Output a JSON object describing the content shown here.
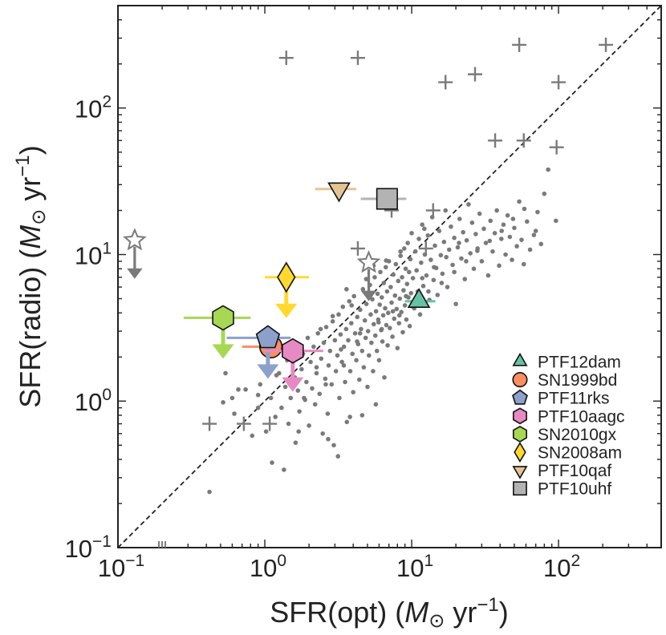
{
  "chart_data": {
    "type": "scatter",
    "xlabel": "SFR(opt) (M⊙ yr⁻¹)",
    "ylabel": "SFR(radio) (M⊙ yr⁻¹)",
    "xlabel_parts": {
      "pre": "SFR(opt) (",
      "m": "M",
      "sun": "⊙",
      "mid": " yr",
      "exp": "−1",
      "post": ")"
    },
    "ylabel_parts": {
      "pre": "SFR(radio) (",
      "m": "M",
      "sun": "⊙",
      "mid": " yr",
      "exp": "−1",
      "post": ")"
    },
    "x_scale": "log",
    "y_scale": "log",
    "xlim": [
      0.1,
      500
    ],
    "ylim": [
      0.1,
      500
    ],
    "x_ticks": [
      {
        "value": 0.1,
        "base": "10",
        "exp": "−1"
      },
      {
        "value": 1,
        "base": "10",
        "exp": "0"
      },
      {
        "value": 10,
        "base": "10",
        "exp": "1"
      },
      {
        "value": 100,
        "base": "10",
        "exp": "2"
      }
    ],
    "y_ticks": [
      {
        "value": 0.1,
        "base": "10",
        "exp": "−1"
      },
      {
        "value": 1,
        "base": "10",
        "exp": "0"
      },
      {
        "value": 10,
        "base": "10",
        "exp": "1"
      },
      {
        "value": 100,
        "base": "10",
        "exp": "2"
      }
    ],
    "grid": false,
    "legend_position": "bottom-right",
    "one_to_one_line": true,
    "highlighted": [
      {
        "name": "PTF12dam",
        "marker": "triangle-up",
        "color": "#66c2a5",
        "x": 11.2,
        "y": 4.8,
        "xerr": [
          9.0,
          14.5
        ],
        "upper_limit": false
      },
      {
        "name": "SN1999bd",
        "marker": "circle",
        "color": "#fc8d62",
        "x": 1.1,
        "y": 2.35,
        "xerr": [
          0.7,
          1.4
        ],
        "upper_limit": false
      },
      {
        "name": "PTF11rks",
        "marker": "pentagon",
        "color": "#8da0cb",
        "x": 1.05,
        "y": 2.7,
        "xerr": [
          0.55,
          1.5
        ],
        "upper_limit": true
      },
      {
        "name": "PTF10aagc",
        "marker": "hexagon",
        "color": "#e78ac3",
        "x": 1.55,
        "y": 2.2,
        "xerr": [
          1.0,
          2.5
        ],
        "upper_limit": true
      },
      {
        "name": "SN2010gx",
        "marker": "hexagon",
        "color": "#a6d854",
        "x": 0.52,
        "y": 3.7,
        "xerr": [
          0.28,
          0.8
        ],
        "upper_limit": true
      },
      {
        "name": "SN2008am",
        "marker": "diamond",
        "color": "#ffd92f",
        "x": 1.4,
        "y": 7.0,
        "xerr": [
          1.0,
          2.0
        ],
        "upper_limit": true
      },
      {
        "name": "PTF10qaf",
        "marker": "triangle-down",
        "color": "#e5c494",
        "x": 3.2,
        "y": 28.0,
        "xerr": [
          2.2,
          4.2
        ],
        "upper_limit": false
      },
      {
        "name": "PTF10uhf",
        "marker": "square",
        "color": "#b3b3b3",
        "x": 6.8,
        "y": 24.0,
        "xerr": [
          4.5,
          9.2
        ],
        "upper_limit": false
      }
    ],
    "star_limits": [
      {
        "x": 0.13,
        "y": 12.5
      },
      {
        "x": 5.1,
        "y": 8.8
      }
    ],
    "plus_points": [
      [
        1.4,
        220
      ],
      [
        4.3,
        220
      ],
      [
        17,
        150
      ],
      [
        27,
        170
      ],
      [
        54,
        270
      ],
      [
        100,
        150
      ],
      [
        210,
        270
      ],
      [
        37,
        60
      ],
      [
        58,
        60
      ],
      [
        97,
        54
      ],
      [
        14,
        20
      ],
      [
        7.3,
        20
      ],
      [
        4.3,
        11
      ],
      [
        12.5,
        11
      ],
      [
        0.42,
        0.7
      ],
      [
        0.72,
        0.7
      ],
      [
        1.08,
        0.7
      ]
    ],
    "points": [
      [
        0.42,
        0.24
      ],
      [
        0.54,
        1.55
      ],
      [
        0.6,
        1.05
      ],
      [
        0.62,
        0.82
      ],
      [
        0.74,
        1.2
      ],
      [
        0.82,
        0.58
      ],
      [
        0.9,
        0.9
      ],
      [
        0.93,
        1.3
      ],
      [
        0.98,
        1.7
      ],
      [
        1.02,
        0.62
      ],
      [
        1.1,
        1.05
      ],
      [
        1.12,
        0.38
      ],
      [
        1.18,
        0.78
      ],
      [
        1.25,
        1.55
      ],
      [
        1.3,
        0.9
      ],
      [
        1.35,
        0.34
      ],
      [
        1.38,
        1.25
      ],
      [
        1.42,
        1.9
      ],
      [
        1.45,
        0.7
      ],
      [
        1.5,
        1.05
      ],
      [
        1.55,
        2.45
      ],
      [
        1.6,
        1.45
      ],
      [
        1.62,
        0.52
      ],
      [
        1.68,
        1.18
      ],
      [
        1.72,
        0.85
      ],
      [
        1.78,
        1.65
      ],
      [
        1.82,
        2.1
      ],
      [
        1.88,
        1.02
      ],
      [
        1.92,
        1.35
      ],
      [
        1.96,
        2.7
      ],
      [
        2.0,
        0.68
      ],
      [
        2.05,
        1.85
      ],
      [
        2.1,
        1.22
      ],
      [
        2.15,
        2.35
      ],
      [
        2.2,
        0.95
      ],
      [
        2.25,
        1.55
      ],
      [
        2.3,
        2.9
      ],
      [
        2.36,
        1.12
      ],
      [
        2.42,
        1.95
      ],
      [
        2.48,
        0.6
      ],
      [
        2.52,
        2.5
      ],
      [
        2.58,
        1.42
      ],
      [
        2.62,
        3.2
      ],
      [
        2.68,
        0.82
      ],
      [
        2.72,
        1.75
      ],
      [
        2.78,
        2.2
      ],
      [
        2.85,
        1.3
      ],
      [
        2.9,
        3.5
      ],
      [
        2.95,
        0.5
      ],
      [
        3.0,
        2.6
      ],
      [
        3.05,
        1.6
      ],
      [
        3.12,
        2.05
      ],
      [
        3.18,
        3.9
      ],
      [
        3.22,
        1.05
      ],
      [
        3.28,
        2.85
      ],
      [
        3.35,
        1.85
      ],
      [
        3.4,
        4.4
      ],
      [
        3.46,
        2.35
      ],
      [
        3.52,
        1.35
      ],
      [
        3.58,
        3.1
      ],
      [
        3.62,
        0.72
      ],
      [
        3.7,
        2.6
      ],
      [
        3.76,
        4.8
      ],
      [
        3.82,
        1.6
      ],
      [
        3.88,
        3.4
      ],
      [
        3.95,
        2.1
      ],
      [
        4.0,
        1.15
      ],
      [
        4.05,
        5.2
      ],
      [
        4.12,
        2.9
      ],
      [
        4.2,
        1.9
      ],
      [
        4.26,
        3.75
      ],
      [
        4.32,
        2.45
      ],
      [
        4.4,
        1.4
      ],
      [
        4.46,
        4.2
      ],
      [
        4.52,
        3.1
      ],
      [
        4.6,
        2.2
      ],
      [
        4.66,
        5.8
      ],
      [
        4.72,
        1.7
      ],
      [
        4.8,
        3.55
      ],
      [
        4.86,
        2.7
      ],
      [
        4.92,
        4.6
      ],
      [
        5.0,
        1.25
      ],
      [
        5.05,
        3.0
      ],
      [
        5.12,
        2.05
      ],
      [
        5.2,
        6.2
      ],
      [
        5.26,
        3.9
      ],
      [
        5.32,
        2.5
      ],
      [
        5.4,
        4.95
      ],
      [
        5.46,
        1.6
      ],
      [
        5.52,
        3.35
      ],
      [
        5.6,
        7.0
      ],
      [
        5.66,
        2.8
      ],
      [
        5.72,
        4.1
      ],
      [
        5.8,
        2.2
      ],
      [
        5.86,
        5.4
      ],
      [
        5.92,
        3.6
      ],
      [
        6.0,
        1.9
      ],
      [
        6.06,
        4.55
      ],
      [
        6.12,
        7.6
      ],
      [
        6.2,
        3.05
      ],
      [
        6.26,
        5.1
      ],
      [
        6.32,
        2.55
      ],
      [
        6.4,
        3.85
      ],
      [
        6.46,
        6.4
      ],
      [
        6.52,
        1.45
      ],
      [
        6.6,
        4.3
      ],
      [
        6.66,
        8.2
      ],
      [
        6.72,
        3.3
      ],
      [
        6.8,
        5.6
      ],
      [
        6.86,
        2.4
      ],
      [
        6.92,
        4.0
      ],
      [
        7.0,
        9.0
      ],
      [
        7.1,
        3.15
      ],
      [
        7.2,
        6.0
      ],
      [
        7.3,
        4.7
      ],
      [
        7.4,
        2.75
      ],
      [
        7.5,
        7.3
      ],
      [
        7.6,
        3.65
      ],
      [
        7.7,
        5.25
      ],
      [
        7.8,
        8.6
      ],
      [
        7.9,
        4.25
      ],
      [
        8.0,
        2.3
      ],
      [
        8.1,
        6.6
      ],
      [
        8.2,
        3.4
      ],
      [
        8.3,
        5.0
      ],
      [
        8.4,
        9.8
      ],
      [
        8.5,
        4.05
      ],
      [
        8.6,
        7.0
      ],
      [
        8.7,
        2.95
      ],
      [
        8.8,
        5.7
      ],
      [
        8.9,
        11.0
      ],
      [
        9.0,
        4.5
      ],
      [
        9.1,
        8.0
      ],
      [
        9.2,
        3.6
      ],
      [
        9.3,
        6.3
      ],
      [
        9.4,
        12.0
      ],
      [
        9.5,
        5.1
      ],
      [
        9.6,
        7.6
      ],
      [
        9.7,
        3.25
      ],
      [
        9.8,
        9.3
      ],
      [
        9.9,
        5.45
      ],
      [
        10.0,
        14.0
      ],
      [
        10.2,
        6.9
      ],
      [
        10.4,
        4.3
      ],
      [
        10.6,
        10.5
      ],
      [
        10.8,
        7.8
      ],
      [
        11.0,
        5.6
      ],
      [
        11.2,
        12.8
      ],
      [
        11.4,
        3.9
      ],
      [
        11.6,
        8.8
      ],
      [
        11.8,
        16.0
      ],
      [
        12.0,
        6.1
      ],
      [
        12.3,
        10.0
      ],
      [
        12.6,
        7.2
      ],
      [
        12.9,
        13.5
      ],
      [
        13.2,
        4.9
      ],
      [
        13.5,
        9.2
      ],
      [
        13.8,
        18.0
      ],
      [
        14.1,
        6.7
      ],
      [
        14.4,
        11.5
      ],
      [
        14.7,
        8.1
      ],
      [
        15.0,
        5.3
      ],
      [
        15.4,
        14.5
      ],
      [
        15.8,
        9.9
      ],
      [
        16.2,
        7.4
      ],
      [
        16.6,
        12.2
      ],
      [
        17.0,
        20.0
      ],
      [
        17.5,
        6.0
      ],
      [
        18.0,
        10.8
      ],
      [
        18.5,
        15.5
      ],
      [
        19.0,
        8.5
      ],
      [
        19.5,
        13.0
      ],
      [
        20.0,
        4.6
      ],
      [
        20.6,
        11.2
      ],
      [
        21.2,
        17.5
      ],
      [
        21.8,
        9.4
      ],
      [
        22.4,
        14.2
      ],
      [
        23.0,
        6.8
      ],
      [
        23.7,
        12.5
      ],
      [
        24.4,
        22.0
      ],
      [
        25.1,
        10.2
      ],
      [
        25.8,
        16.5
      ],
      [
        26.5,
        8.0
      ],
      [
        27.3,
        13.8
      ],
      [
        28.1,
        11.0
      ],
      [
        29.0,
        19.0
      ],
      [
        30.0,
        9.0
      ],
      [
        31.0,
        15.0
      ],
      [
        32.0,
        12.0
      ],
      [
        33.2,
        7.2
      ],
      [
        34.4,
        17.0
      ],
      [
        35.6,
        10.5
      ],
      [
        36.8,
        14.0
      ],
      [
        38.0,
        20.0
      ],
      [
        39.4,
        8.4
      ],
      [
        40.8,
        12.8
      ],
      [
        42.2,
        16.0
      ],
      [
        43.6,
        10.0
      ],
      [
        45.0,
        18.5
      ],
      [
        46.6,
        13.2
      ],
      [
        48.2,
        9.2
      ],
      [
        50.0,
        15.2
      ],
      [
        52.0,
        11.4
      ],
      [
        54.0,
        23.0
      ],
      [
        56.0,
        12.6
      ],
      [
        58.0,
        8.6
      ],
      [
        61.0,
        16.8
      ],
      [
        64.0,
        10.8
      ],
      [
        68.0,
        13.6
      ],
      [
        72.0,
        19.5
      ],
      [
        76.0,
        11.8
      ],
      [
        80.0,
        26.0
      ],
      [
        85.0,
        38.0
      ],
      [
        96.0,
        17.0
      ],
      [
        3.15,
        0.42
      ],
      [
        3.8,
        0.78
      ],
      [
        2.7,
        0.55
      ],
      [
        1.7,
        0.62
      ],
      [
        5.7,
        0.95
      ],
      [
        4.6,
        0.8
      ],
      [
        0.52,
        0.98
      ],
      [
        0.66,
        1.2
      ],
      [
        0.9,
        1.1
      ],
      [
        1.2,
        1.5
      ],
      [
        2.4,
        3.1
      ],
      [
        2.9,
        3.8
      ],
      [
        3.6,
        5.8
      ],
      [
        4.9,
        6.8
      ],
      [
        5.5,
        8.4
      ],
      [
        1.85,
        1.05
      ],
      [
        2.25,
        1.7
      ],
      [
        3.3,
        2.25
      ],
      [
        4.45,
        2.9
      ],
      [
        5.95,
        3.45
      ],
      [
        7.45,
        4.1
      ],
      [
        9.15,
        5.2
      ],
      [
        11.8,
        6.9
      ],
      [
        14.2,
        8.2
      ],
      [
        17.2,
        9.6
      ],
      [
        21.0,
        12.0
      ],
      [
        2.6,
        1.3
      ],
      [
        3.45,
        1.75
      ],
      [
        4.25,
        2.55
      ],
      [
        6.25,
        3.1
      ],
      [
        8.25,
        3.85
      ],
      [
        10.2,
        4.4
      ],
      [
        13.0,
        5.6
      ],
      [
        16.0,
        6.4
      ],
      [
        19.5,
        7.6
      ],
      [
        23.5,
        9.0
      ],
      [
        28.0,
        10.6
      ],
      [
        34.0,
        12.4
      ],
      [
        41.0,
        14.5
      ],
      [
        49.0,
        17.5
      ],
      [
        58.5,
        20.5
      ],
      [
        70.0,
        14.5
      ],
      [
        3.9,
        4.5
      ],
      [
        6.7,
        9.1
      ],
      [
        8.4,
        10.5
      ],
      [
        12.2,
        15.0
      ]
    ]
  }
}
